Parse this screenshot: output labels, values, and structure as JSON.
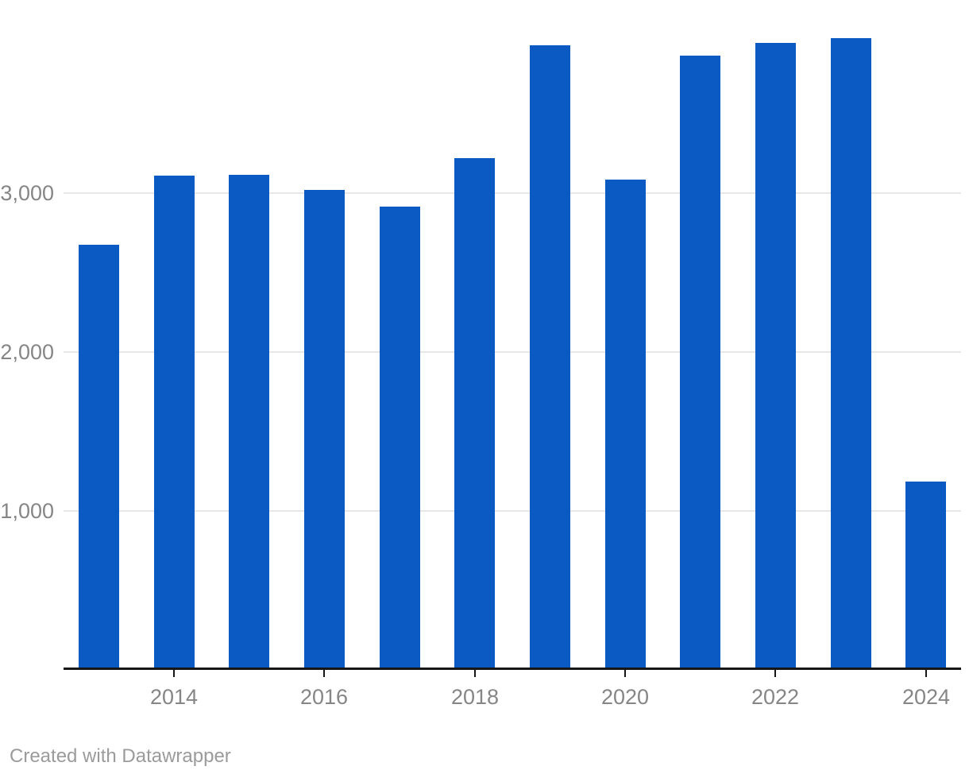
{
  "attribution": "Created with Datawrapper",
  "colors": {
    "bar": "#0b5ac4",
    "grid": "#e7e7e7",
    "axis_line": "#161616",
    "tick": "#161616",
    "axis_label_text": "#868686",
    "attribution_text": "#9b9b9b",
    "background": "#ffffff"
  },
  "chart_data": {
    "type": "bar",
    "title": "",
    "xlabel": "",
    "ylabel": "",
    "categories": [
      "2013",
      "2014",
      "2015",
      "2016",
      "2017",
      "2018",
      "2019",
      "2020",
      "2021",
      "2022",
      "2023",
      "2024"
    ],
    "values": [
      2675,
      3110,
      3115,
      3020,
      2915,
      3220,
      3930,
      3085,
      3865,
      3945,
      3975,
      1185
    ],
    "ylim": [
      0,
      4000
    ],
    "y_ticks": [
      1000,
      2000,
      3000
    ],
    "y_tick_labels": [
      "1,000",
      "2,000",
      "3,000"
    ],
    "x_tick_labels": [
      "2014",
      "2016",
      "2018",
      "2020",
      "2022",
      "2024"
    ],
    "grid": "horizontal-only",
    "legend": "none",
    "bar_color": "#0b5ac4"
  }
}
